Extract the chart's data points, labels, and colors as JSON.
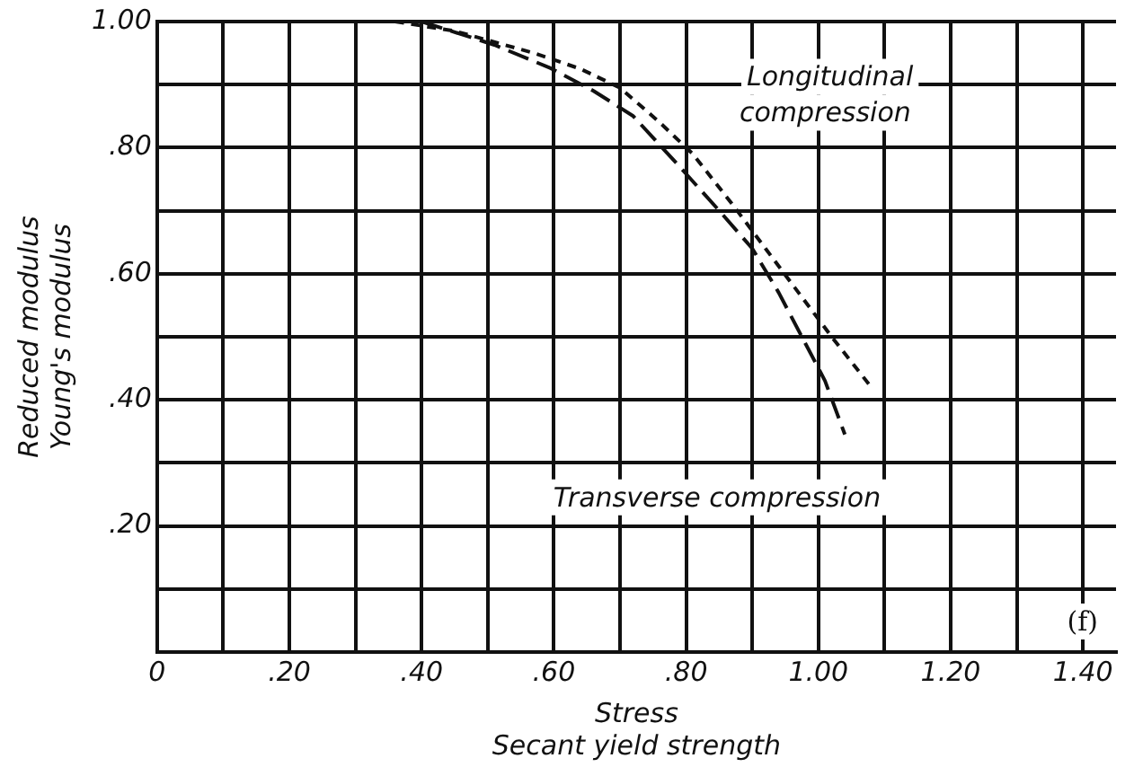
{
  "chart_data": {
    "type": "line",
    "xlabel": "Stress\nSecant yield strength",
    "ylabel": "Reduced modulus\nYoung's modulus",
    "xlim": [
      0,
      1.45
    ],
    "ylim": [
      0,
      1.0
    ],
    "xticks": [
      0,
      {
        "value": 0.1,
        "label": null
      },
      {
        "value": 0.2,
        "label": ".20"
      },
      {
        "value": 0.3,
        "label": null
      },
      {
        "value": 0.4,
        "label": ".40"
      },
      {
        "value": 0.5,
        "label": null
      },
      {
        "value": 0.6,
        "label": ".60"
      },
      {
        "value": 0.7,
        "label": null
      },
      {
        "value": 0.8,
        "label": ".80"
      },
      {
        "value": 0.9,
        "label": null
      },
      {
        "value": 1.0,
        "label": "1.00"
      },
      {
        "value": 1.1,
        "label": null
      },
      {
        "value": 1.2,
        "label": "1.20"
      },
      {
        "value": 1.3,
        "label": null
      },
      {
        "value": 1.4,
        "label": "1.40"
      }
    ],
    "yticks": [
      {
        "value": 0,
        "label": null
      },
      {
        "value": 0.1,
        "label": null
      },
      {
        "value": 0.2,
        "label": ".20"
      },
      {
        "value": 0.3,
        "label": null
      },
      {
        "value": 0.4,
        "label": ".40"
      },
      {
        "value": 0.5,
        "label": null
      },
      {
        "value": 0.6,
        "label": ".60"
      },
      {
        "value": 0.7,
        "label": null
      },
      {
        "value": 0.8,
        "label": ".80"
      },
      {
        "value": 0.9,
        "label": null
      },
      {
        "value": 1.0,
        "label": "1.00"
      }
    ],
    "grid": true,
    "legend": false,
    "marker": "none",
    "line_style": "dashed",
    "series": [
      {
        "name": "Longitudinal compression",
        "color": "#111111",
        "x": [
          0.36,
          0.45,
          0.57,
          0.64,
          0.7,
          0.76,
          0.81,
          0.87,
          0.92,
          0.97,
          1.02,
          1.05,
          1.08
        ],
        "values": [
          1.0,
          0.985,
          0.95,
          0.925,
          0.895,
          0.84,
          0.79,
          0.71,
          0.64,
          0.57,
          0.5,
          0.46,
          0.42
        ]
      },
      {
        "name": "Transverse compression",
        "color": "#111111",
        "x": [
          0.4,
          0.51,
          0.595,
          0.66,
          0.72,
          0.79,
          0.85,
          0.9,
          0.94,
          0.98,
          1.01,
          1.04
        ],
        "values": [
          1.0,
          0.963,
          0.926,
          0.89,
          0.85,
          0.77,
          0.7,
          0.64,
          0.57,
          0.49,
          0.43,
          0.345
        ]
      }
    ],
    "annotations": [
      "(f)"
    ]
  }
}
